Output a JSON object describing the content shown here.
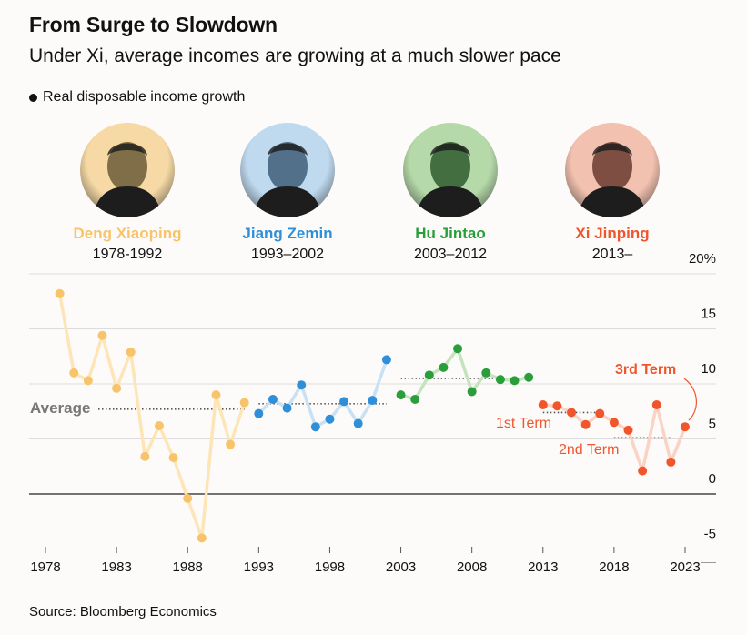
{
  "title": "From Surge to Slowdown",
  "subtitle": "Under Xi, average incomes are growing at a much slower pace",
  "legend": {
    "label": "Real disposable income growth"
  },
  "leaders": [
    {
      "name": "Deng Xiaoping",
      "term": "1978-1992",
      "color": "#f7c46b",
      "portrait_bg": "#f6d9a4",
      "portrait_tint": "#6b5a3a"
    },
    {
      "name": "Jiang Zemin",
      "term": "1993–2002",
      "color": "#2f8fd8",
      "portrait_bg": "#bfd9ef",
      "portrait_tint": "#3f5d78"
    },
    {
      "name": "Hu Jintao",
      "term": "2003–2012",
      "color": "#2a9e3a",
      "portrait_bg": "#b5d9a8",
      "portrait_tint": "#2f5a2d"
    },
    {
      "name": "Xi Jinping",
      "term": "2013–",
      "color": "#f1552c",
      "portrait_bg": "#f3c1b0",
      "portrait_tint": "#6a3a30"
    }
  ],
  "annotations": {
    "average": "Average",
    "first_term": "1st Term",
    "second_term": "2nd Term",
    "third_term": "3rd Term"
  },
  "source": "Source: Bloomberg Economics",
  "chart_data": {
    "type": "line",
    "title": "From Surge to Slowdown",
    "ylabel": "Real disposable income growth",
    "xlim": [
      1977,
      2025
    ],
    "ylim": [
      -5,
      20
    ],
    "y_ticks": [
      20,
      15,
      10,
      5,
      0,
      -5
    ],
    "y_tick_labels": [
      "20%",
      "15",
      "10",
      "5",
      "0",
      "-5"
    ],
    "x_ticks": [
      1978,
      1983,
      1988,
      1993,
      1998,
      2003,
      2008,
      2013,
      2018,
      2023
    ],
    "x_tick_labels": [
      "1978",
      "1983",
      "1988",
      "1993",
      "1998",
      "2003",
      "2008",
      "2013",
      "2018",
      "2023"
    ],
    "series": [
      {
        "name": "Deng Xiaoping",
        "color": "#f7c46b",
        "light": "#fde5b8",
        "x": [
          1979,
          1980,
          1981,
          1982,
          1983,
          1984,
          1985,
          1986,
          1987,
          1988,
          1989,
          1990,
          1991,
          1992
        ],
        "values": [
          18.2,
          11.0,
          10.3,
          14.4,
          9.6,
          12.9,
          3.4,
          6.2,
          3.3,
          -0.4,
          -4.0,
          9.0,
          4.5,
          8.3
        ],
        "average": 7.7
      },
      {
        "name": "Jiang Zemin",
        "color": "#2f8fd8",
        "light": "#c8e1f4",
        "x": [
          1993,
          1994,
          1995,
          1996,
          1997,
          1998,
          1999,
          2000,
          2001,
          2002
        ],
        "values": [
          7.3,
          8.6,
          7.8,
          9.9,
          6.1,
          6.8,
          8.4,
          6.4,
          8.5,
          12.2
        ],
        "average": 8.2
      },
      {
        "name": "Hu Jintao",
        "color": "#2a9e3a",
        "light": "#c6e3bf",
        "x": [
          2003,
          2004,
          2005,
          2006,
          2007,
          2008,
          2009,
          2010,
          2011,
          2012
        ],
        "values": [
          9.0,
          8.6,
          10.8,
          11.5,
          13.2,
          9.3,
          11.0,
          10.4,
          10.3,
          10.6
        ],
        "average": 10.5
      },
      {
        "name": "Xi Jinping",
        "color": "#f1552c",
        "light": "#fbd3c4",
        "x": [
          2013,
          2014,
          2015,
          2016,
          2017,
          2018,
          2019,
          2020,
          2021,
          2022,
          2023
        ],
        "values": [
          8.1,
          8.0,
          7.4,
          6.3,
          7.3,
          6.5,
          5.8,
          2.1,
          8.1,
          2.9,
          6.1
        ],
        "averages": [
          {
            "label": "1st Term",
            "from": 2013,
            "to": 2017,
            "value": 7.4
          },
          {
            "label": "2nd Term",
            "from": 2018,
            "to": 2022,
            "value": 5.1
          }
        ]
      }
    ],
    "overall_average": 7.7
  }
}
